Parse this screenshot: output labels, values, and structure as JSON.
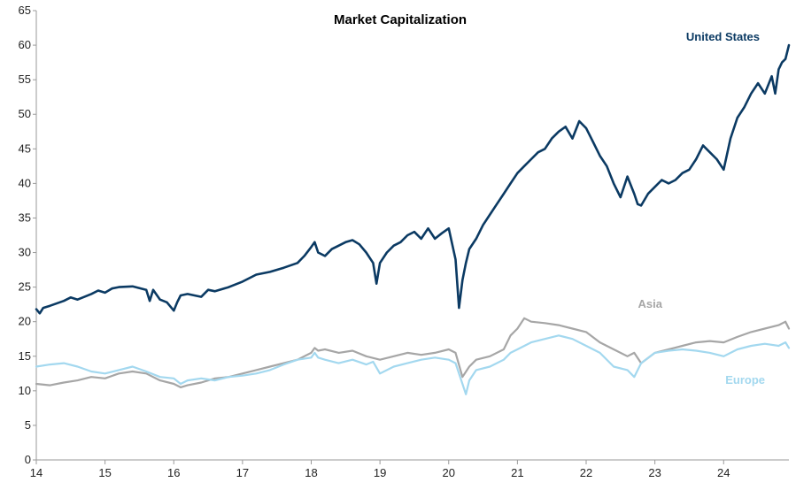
{
  "chart_data": {
    "type": "line",
    "title": "Market Capitalization",
    "xlabel": "",
    "ylabel": "",
    "xlim": [
      14,
      24.95
    ],
    "ylim": [
      0,
      65
    ],
    "x_ticks": [
      14,
      15,
      16,
      17,
      18,
      19,
      20,
      21,
      22,
      23,
      24
    ],
    "x_tick_labels": [
      "14",
      "15",
      "16",
      "17",
      "18",
      "19",
      "20",
      "21",
      "22",
      "23",
      "24"
    ],
    "y_ticks": [
      0,
      5,
      10,
      15,
      20,
      25,
      30,
      35,
      40,
      45,
      50,
      55,
      60,
      65
    ],
    "y_tick_labels": [
      "0",
      "5",
      "10",
      "15",
      "20",
      "25",
      "30",
      "35",
      "40",
      "45",
      "50",
      "55",
      "60",
      "65"
    ],
    "grid": false,
    "series": [
      {
        "name": "United States",
        "color": "#0b3a63",
        "x": [
          14.0,
          14.05,
          14.1,
          14.2,
          14.4,
          14.5,
          14.6,
          14.8,
          14.9,
          15.0,
          15.1,
          15.2,
          15.4,
          15.6,
          15.65,
          15.7,
          15.8,
          15.9,
          16.0,
          16.05,
          16.1,
          16.2,
          16.4,
          16.5,
          16.6,
          16.8,
          17.0,
          17.2,
          17.4,
          17.6,
          17.8,
          17.9,
          18.0,
          18.05,
          18.1,
          18.2,
          18.3,
          18.4,
          18.5,
          18.6,
          18.7,
          18.8,
          18.9,
          18.95,
          19.0,
          19.1,
          19.2,
          19.3,
          19.4,
          19.5,
          19.6,
          19.7,
          19.8,
          19.9,
          20.0,
          20.1,
          20.15,
          20.2,
          20.25,
          20.3,
          20.4,
          20.5,
          20.6,
          20.7,
          20.8,
          20.9,
          21.0,
          21.1,
          21.2,
          21.3,
          21.4,
          21.5,
          21.6,
          21.7,
          21.8,
          21.9,
          22.0,
          22.05,
          22.1,
          22.2,
          22.3,
          22.4,
          22.5,
          22.6,
          22.7,
          22.75,
          22.8,
          22.9,
          23.0,
          23.1,
          23.2,
          23.3,
          23.4,
          23.5,
          23.6,
          23.7,
          23.8,
          23.9,
          24.0,
          24.1,
          24.2,
          24.3,
          24.4,
          24.5,
          24.6,
          24.7,
          24.75,
          24.8,
          24.85,
          24.9,
          24.95
        ],
        "values": [
          21.8,
          21.2,
          22.0,
          22.3,
          23.0,
          23.5,
          23.2,
          24.0,
          24.5,
          24.2,
          24.8,
          25.0,
          25.1,
          24.6,
          23.0,
          24.6,
          23.2,
          22.8,
          21.6,
          22.8,
          23.8,
          24.0,
          23.6,
          24.6,
          24.4,
          25.0,
          25.8,
          26.8,
          27.2,
          27.8,
          28.5,
          29.5,
          30.8,
          31.5,
          30.0,
          29.5,
          30.5,
          31.0,
          31.5,
          31.8,
          31.2,
          30.0,
          28.5,
          25.5,
          28.5,
          30.0,
          31.0,
          31.5,
          32.5,
          33.0,
          32.0,
          33.5,
          32.0,
          32.8,
          33.5,
          29.0,
          22.0,
          26.0,
          28.5,
          30.5,
          32.0,
          34.0,
          35.5,
          37.0,
          38.5,
          40.0,
          41.5,
          42.5,
          43.5,
          44.5,
          45.0,
          46.5,
          47.5,
          48.2,
          46.5,
          49.0,
          48.0,
          47.0,
          46.0,
          44.0,
          42.5,
          40.0,
          38.0,
          41.0,
          38.5,
          37.0,
          36.8,
          38.5,
          39.5,
          40.5,
          40.0,
          40.5,
          41.5,
          42.0,
          43.5,
          45.5,
          44.5,
          43.5,
          42.0,
          46.5,
          49.5,
          51.0,
          53.0,
          54.5,
          53.0,
          55.5,
          53.0,
          56.5,
          57.5,
          58.0,
          60.0
        ]
      },
      {
        "name": "Asia",
        "color": "#a6a6a6",
        "x": [
          14.0,
          14.2,
          14.4,
          14.6,
          14.8,
          15.0,
          15.2,
          15.4,
          15.6,
          15.8,
          16.0,
          16.1,
          16.2,
          16.4,
          16.6,
          16.8,
          17.0,
          17.2,
          17.4,
          17.6,
          17.8,
          18.0,
          18.05,
          18.1,
          18.2,
          18.4,
          18.6,
          18.8,
          19.0,
          19.2,
          19.4,
          19.6,
          19.8,
          20.0,
          20.1,
          20.2,
          20.3,
          20.4,
          20.6,
          20.8,
          20.9,
          21.0,
          21.1,
          21.2,
          21.4,
          21.6,
          21.8,
          22.0,
          22.2,
          22.4,
          22.6,
          22.7,
          22.8,
          23.0,
          23.2,
          23.4,
          23.6,
          23.8,
          24.0,
          24.2,
          24.4,
          24.6,
          24.8,
          24.9,
          24.95
        ],
        "values": [
          11.0,
          10.8,
          11.2,
          11.5,
          12.0,
          11.8,
          12.5,
          12.8,
          12.5,
          11.5,
          11.0,
          10.5,
          10.8,
          11.2,
          11.8,
          12.0,
          12.5,
          13.0,
          13.5,
          14.0,
          14.5,
          15.5,
          16.2,
          15.8,
          16.0,
          15.5,
          15.8,
          15.0,
          14.5,
          15.0,
          15.5,
          15.2,
          15.5,
          16.0,
          15.5,
          12.0,
          13.5,
          14.5,
          15.0,
          16.0,
          18.0,
          19.0,
          20.5,
          20.0,
          19.8,
          19.5,
          19.0,
          18.5,
          17.0,
          16.0,
          15.0,
          15.5,
          14.0,
          15.5,
          16.0,
          16.5,
          17.0,
          17.2,
          17.0,
          17.8,
          18.5,
          19.0,
          19.5,
          20.0,
          19.0
        ]
      },
      {
        "name": "Europe",
        "color": "#a3d8ef",
        "x": [
          14.0,
          14.2,
          14.4,
          14.6,
          14.8,
          15.0,
          15.2,
          15.4,
          15.6,
          15.8,
          16.0,
          16.1,
          16.2,
          16.4,
          16.6,
          16.8,
          17.0,
          17.2,
          17.4,
          17.6,
          17.8,
          18.0,
          18.05,
          18.1,
          18.2,
          18.4,
          18.6,
          18.8,
          18.9,
          19.0,
          19.2,
          19.4,
          19.6,
          19.8,
          20.0,
          20.1,
          20.2,
          20.25,
          20.3,
          20.4,
          20.6,
          20.8,
          20.9,
          21.0,
          21.2,
          21.4,
          21.6,
          21.8,
          22.0,
          22.2,
          22.4,
          22.6,
          22.7,
          22.75,
          22.8,
          23.0,
          23.2,
          23.4,
          23.6,
          23.8,
          24.0,
          24.2,
          24.4,
          24.6,
          24.8,
          24.9,
          24.95
        ],
        "values": [
          13.5,
          13.8,
          14.0,
          13.5,
          12.8,
          12.5,
          13.0,
          13.5,
          12.8,
          12.0,
          11.8,
          11.0,
          11.5,
          11.8,
          11.5,
          12.0,
          12.2,
          12.5,
          13.0,
          13.8,
          14.5,
          14.8,
          15.5,
          14.8,
          14.5,
          14.0,
          14.5,
          13.8,
          14.2,
          12.5,
          13.5,
          14.0,
          14.5,
          14.8,
          14.5,
          14.0,
          11.0,
          9.5,
          11.5,
          13.0,
          13.5,
          14.5,
          15.5,
          16.0,
          17.0,
          17.5,
          18.0,
          17.5,
          16.5,
          15.5,
          13.5,
          13.0,
          12.0,
          13.0,
          14.0,
          15.5,
          15.8,
          16.0,
          15.8,
          15.5,
          15.0,
          16.0,
          16.5,
          16.8,
          16.5,
          17.0,
          16.2
        ]
      }
    ],
    "annotations": {
      "us_label": "United States",
      "asia_label": "Asia",
      "europe_label": "Europe"
    }
  }
}
